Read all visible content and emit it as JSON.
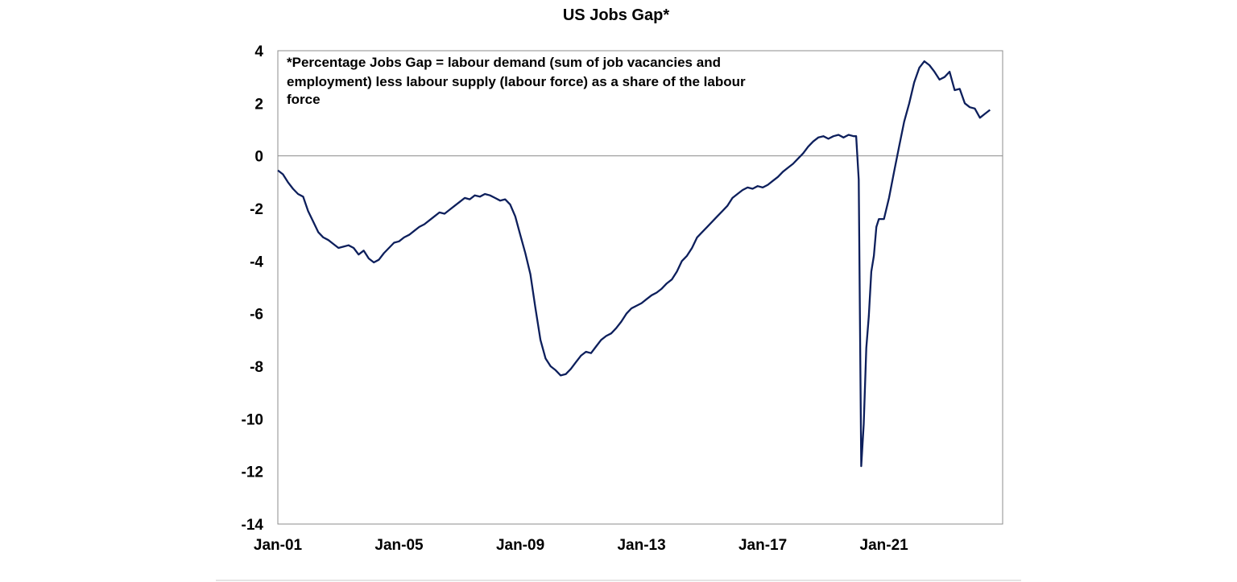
{
  "chart_data": {
    "type": "line",
    "title": "US Jobs Gap*",
    "xlabel": "",
    "ylabel": "",
    "annotation": [
      "*Percentage Jobs Gap = labour demand (sum of job vacancies and",
      "employment) less labour supply (labour force) as a share of the labour",
      "force"
    ],
    "xlim": [
      "2001-01",
      "2024-12"
    ],
    "ylim": [
      -14,
      4
    ],
    "yticks": [
      4,
      2,
      0,
      -2,
      -4,
      -6,
      -8,
      -10,
      -12,
      -14
    ],
    "ytick_labels": [
      "4",
      "2",
      "0",
      "-2",
      "-4",
      "-6",
      "-8",
      "-10",
      "-12",
      "-14"
    ],
    "xticks": [
      "2001-01",
      "2005-01",
      "2009-01",
      "2013-01",
      "2017-01",
      "2021-01"
    ],
    "xtick_labels": [
      "Jan-01",
      "Jan-05",
      "Jan-09",
      "Jan-13",
      "Jan-17",
      "Jan-21"
    ],
    "zero_line": true,
    "grid": false,
    "legend": "none",
    "series": [
      {
        "color": "#0d1f5c",
        "points": [
          [
            "2001-01",
            -0.55
          ],
          [
            "2001-03",
            -0.7
          ],
          [
            "2001-05",
            -1.0
          ],
          [
            "2001-07",
            -1.25
          ],
          [
            "2001-09",
            -1.45
          ],
          [
            "2001-11",
            -1.55
          ],
          [
            "2002-01",
            -2.1
          ],
          [
            "2002-03",
            -2.5
          ],
          [
            "2002-05",
            -2.9
          ],
          [
            "2002-07",
            -3.1
          ],
          [
            "2002-09",
            -3.2
          ],
          [
            "2002-11",
            -3.35
          ],
          [
            "2003-01",
            -3.5
          ],
          [
            "2003-03",
            -3.45
          ],
          [
            "2003-05",
            -3.4
          ],
          [
            "2003-07",
            -3.5
          ],
          [
            "2003-09",
            -3.75
          ],
          [
            "2003-11",
            -3.6
          ],
          [
            "2004-01",
            -3.9
          ],
          [
            "2004-03",
            -4.05
          ],
          [
            "2004-05",
            -3.95
          ],
          [
            "2004-07",
            -3.7
          ],
          [
            "2004-09",
            -3.5
          ],
          [
            "2004-11",
            -3.3
          ],
          [
            "2005-01",
            -3.25
          ],
          [
            "2005-03",
            -3.1
          ],
          [
            "2005-05",
            -3.0
          ],
          [
            "2005-07",
            -2.85
          ],
          [
            "2005-09",
            -2.7
          ],
          [
            "2005-11",
            -2.6
          ],
          [
            "2006-01",
            -2.45
          ],
          [
            "2006-03",
            -2.3
          ],
          [
            "2006-05",
            -2.15
          ],
          [
            "2006-07",
            -2.2
          ],
          [
            "2006-09",
            -2.05
          ],
          [
            "2006-11",
            -1.9
          ],
          [
            "2007-01",
            -1.75
          ],
          [
            "2007-03",
            -1.6
          ],
          [
            "2007-05",
            -1.65
          ],
          [
            "2007-07",
            -1.5
          ],
          [
            "2007-09",
            -1.55
          ],
          [
            "2007-11",
            -1.45
          ],
          [
            "2008-01",
            -1.5
          ],
          [
            "2008-03",
            -1.6
          ],
          [
            "2008-05",
            -1.7
          ],
          [
            "2008-07",
            -1.65
          ],
          [
            "2008-09",
            -1.85
          ],
          [
            "2008-11",
            -2.3
          ],
          [
            "2009-01",
            -3.0
          ],
          [
            "2009-03",
            -3.7
          ],
          [
            "2009-05",
            -4.5
          ],
          [
            "2009-07",
            -5.8
          ],
          [
            "2009-09",
            -7.0
          ],
          [
            "2009-11",
            -7.7
          ],
          [
            "2010-01",
            -8.0
          ],
          [
            "2010-03",
            -8.15
          ],
          [
            "2010-05",
            -8.35
          ],
          [
            "2010-07",
            -8.3
          ],
          [
            "2010-09",
            -8.1
          ],
          [
            "2010-11",
            -7.85
          ],
          [
            "2011-01",
            -7.6
          ],
          [
            "2011-03",
            -7.45
          ],
          [
            "2011-05",
            -7.5
          ],
          [
            "2011-07",
            -7.25
          ],
          [
            "2011-09",
            -7.0
          ],
          [
            "2011-11",
            -6.85
          ],
          [
            "2012-01",
            -6.75
          ],
          [
            "2012-03",
            -6.55
          ],
          [
            "2012-05",
            -6.3
          ],
          [
            "2012-07",
            -6.0
          ],
          [
            "2012-09",
            -5.8
          ],
          [
            "2012-11",
            -5.7
          ],
          [
            "2013-01",
            -5.6
          ],
          [
            "2013-03",
            -5.45
          ],
          [
            "2013-05",
            -5.3
          ],
          [
            "2013-07",
            -5.2
          ],
          [
            "2013-09",
            -5.05
          ],
          [
            "2013-11",
            -4.85
          ],
          [
            "2014-01",
            -4.7
          ],
          [
            "2014-03",
            -4.4
          ],
          [
            "2014-05",
            -4.0
          ],
          [
            "2014-07",
            -3.8
          ],
          [
            "2014-09",
            -3.5
          ],
          [
            "2014-11",
            -3.1
          ],
          [
            "2015-01",
            -2.9
          ],
          [
            "2015-03",
            -2.7
          ],
          [
            "2015-05",
            -2.5
          ],
          [
            "2015-07",
            -2.3
          ],
          [
            "2015-09",
            -2.1
          ],
          [
            "2015-11",
            -1.9
          ],
          [
            "2016-01",
            -1.6
          ],
          [
            "2016-03",
            -1.45
          ],
          [
            "2016-05",
            -1.3
          ],
          [
            "2016-07",
            -1.2
          ],
          [
            "2016-09",
            -1.25
          ],
          [
            "2016-11",
            -1.15
          ],
          [
            "2017-01",
            -1.2
          ],
          [
            "2017-03",
            -1.1
          ],
          [
            "2017-05",
            -0.95
          ],
          [
            "2017-07",
            -0.8
          ],
          [
            "2017-09",
            -0.6
          ],
          [
            "2017-11",
            -0.45
          ],
          [
            "2018-01",
            -0.3
          ],
          [
            "2018-03",
            -0.1
          ],
          [
            "2018-05",
            0.1
          ],
          [
            "2018-07",
            0.35
          ],
          [
            "2018-09",
            0.55
          ],
          [
            "2018-11",
            0.7
          ],
          [
            "2019-01",
            0.75
          ],
          [
            "2019-03",
            0.65
          ],
          [
            "2019-05",
            0.75
          ],
          [
            "2019-07",
            0.8
          ],
          [
            "2019-09",
            0.7
          ],
          [
            "2019-11",
            0.8
          ],
          [
            "2020-01",
            0.75
          ],
          [
            "2020-02",
            0.75
          ],
          [
            "2020-03",
            -0.9
          ],
          [
            "2020-04",
            -11.8
          ],
          [
            "2020-05",
            -10.2
          ],
          [
            "2020-06",
            -7.3
          ],
          [
            "2020-07",
            -6.1
          ],
          [
            "2020-08",
            -4.4
          ],
          [
            "2020-09",
            -3.8
          ],
          [
            "2020-10",
            -2.7
          ],
          [
            "2020-11",
            -2.4
          ],
          [
            "2021-01",
            -2.4
          ],
          [
            "2021-03",
            -1.6
          ],
          [
            "2021-05",
            -0.6
          ],
          [
            "2021-07",
            0.35
          ],
          [
            "2021-09",
            1.3
          ],
          [
            "2021-11",
            2.0
          ],
          [
            "2022-01",
            2.8
          ],
          [
            "2022-03",
            3.35
          ],
          [
            "2022-05",
            3.6
          ],
          [
            "2022-07",
            3.45
          ],
          [
            "2022-09",
            3.2
          ],
          [
            "2022-11",
            2.9
          ],
          [
            "2023-01",
            3.0
          ],
          [
            "2023-03",
            3.2
          ],
          [
            "2023-05",
            2.5
          ],
          [
            "2023-07",
            2.55
          ],
          [
            "2023-09",
            2.0
          ],
          [
            "2023-11",
            1.85
          ],
          [
            "2024-01",
            1.8
          ],
          [
            "2024-03",
            1.45
          ],
          [
            "2024-05",
            1.6
          ],
          [
            "2024-07",
            1.75
          ]
        ]
      }
    ]
  }
}
